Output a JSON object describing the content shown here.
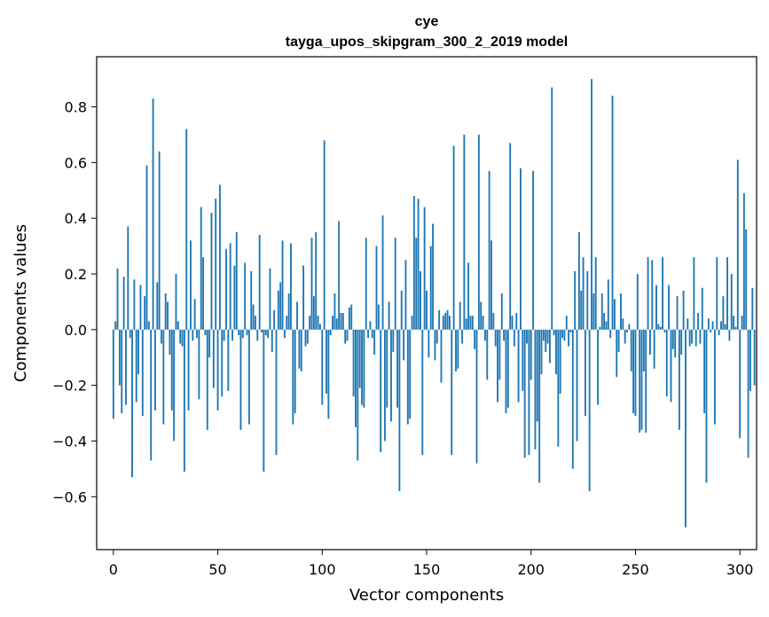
{
  "chart_data": {
    "type": "bar",
    "title": "cye",
    "subtitle": "tayga_upos_skipgram_300_2_2019 model",
    "xlabel": "Vector components",
    "ylabel": "Components values",
    "xlim": [
      -8,
      308
    ],
    "ylim": [
      -0.79,
      0.98
    ],
    "xticks": [
      0,
      50,
      100,
      150,
      200,
      250,
      300
    ],
    "xtick_labels": [
      "0",
      "50",
      "100",
      "150",
      "200",
      "250",
      "300"
    ],
    "yticks": [
      -0.6,
      -0.4,
      -0.2,
      0.0,
      0.2,
      0.4,
      0.6,
      0.8
    ],
    "ytick_labels": [
      "−0.6",
      "−0.4",
      "−0.2",
      "0.0",
      "0.2",
      "0.4",
      "0.6",
      "0.8"
    ],
    "bar_color": "#1f77b4",
    "values": [
      -0.32,
      0.03,
      0.22,
      -0.2,
      -0.3,
      0.19,
      -0.27,
      0.37,
      -0.03,
      -0.53,
      0.18,
      -0.26,
      -0.16,
      0.16,
      -0.31,
      0.12,
      0.59,
      0.03,
      -0.47,
      0.83,
      -0.29,
      0.17,
      0.64,
      -0.05,
      -0.34,
      0.13,
      0.1,
      -0.09,
      -0.29,
      -0.4,
      0.2,
      0.03,
      -0.05,
      -0.06,
      -0.51,
      0.72,
      -0.29,
      0.32,
      -0.04,
      0.11,
      -0.03,
      -0.25,
      0.44,
      0.26,
      -0.02,
      -0.36,
      -0.1,
      0.42,
      -0.21,
      0.47,
      -0.29,
      0.52,
      -0.24,
      -0.04,
      0.29,
      -0.22,
      0.31,
      -0.04,
      0.23,
      0.35,
      -0.02,
      -0.36,
      -0.03,
      0.24,
      -0.02,
      -0.34,
      0.21,
      0.09,
      0.05,
      -0.04,
      0.34,
      -0.01,
      -0.51,
      -0.02,
      -0.03,
      0.22,
      -0.08,
      0.07,
      -0.45,
      0.14,
      0.17,
      0.32,
      -0.03,
      0.05,
      0.13,
      0.31,
      -0.34,
      -0.3,
      0.1,
      -0.14,
      -0.15,
      0.23,
      -0.06,
      -0.05,
      0.05,
      0.33,
      0.12,
      0.35,
      0.05,
      0.02,
      -0.27,
      0.68,
      -0.23,
      -0.32,
      -0.02,
      0.05,
      0.13,
      0.04,
      0.39,
      0.06,
      0.06,
      -0.05,
      -0.04,
      0.08,
      0.09,
      -0.24,
      -0.35,
      -0.47,
      -0.21,
      -0.27,
      -0.28,
      0.33,
      -0.03,
      0.03,
      -0.03,
      -0.09,
      0.3,
      0.09,
      -0.44,
      0.41,
      -0.4,
      -0.28,
      0.1,
      -0.33,
      -0.08,
      0.33,
      -0.28,
      -0.58,
      0.14,
      -0.11,
      0.25,
      -0.34,
      -0.32,
      0.05,
      0.48,
      0.33,
      0.47,
      0.21,
      -0.45,
      0.44,
      0.14,
      -0.1,
      0.3,
      0.38,
      -0.11,
      -0.05,
      0.07,
      -0.19,
      0.05,
      0.06,
      0.07,
      0.05,
      -0.45,
      0.66,
      -0.15,
      -0.14,
      0.1,
      -0.05,
      0.7,
      0.04,
      0.24,
      0.05,
      0.05,
      -0.07,
      -0.48,
      0.7,
      0.1,
      0.05,
      -0.04,
      -0.18,
      0.57,
      0.32,
      0.06,
      -0.06,
      -0.26,
      -0.18,
      0.13,
      -0.04,
      -0.3,
      -0.28,
      0.67,
      0.05,
      -0.06,
      0.06,
      -0.26,
      0.58,
      -0.22,
      -0.46,
      -0.05,
      -0.45,
      -0.18,
      0.57,
      -0.43,
      -0.33,
      -0.55,
      -0.16,
      -0.04,
      -0.08,
      -0.05,
      -0.12,
      0.87,
      -0.02,
      -0.16,
      -0.42,
      -0.23,
      -0.03,
      -0.04,
      0.05,
      -0.06,
      -0.01,
      -0.5,
      0.21,
      -0.4,
      0.35,
      0.14,
      0.26,
      -0.31,
      0.21,
      -0.58,
      0.9,
      0.13,
      0.26,
      -0.27,
      0.01,
      0.13,
      0.06,
      0.03,
      0.18,
      -0.03,
      0.84,
      0.11,
      -0.17,
      -0.08,
      0.13,
      0.04,
      -0.05,
      -0.01,
      0.02,
      -0.15,
      -0.3,
      -0.31,
      0.2,
      -0.37,
      -0.36,
      -0.15,
      -0.37,
      0.26,
      -0.09,
      0.25,
      -0.14,
      0.16,
      0.02,
      0.01,
      0.26,
      -0.01,
      -0.24,
      0.16,
      -0.26,
      -0.07,
      -0.1,
      0.12,
      -0.36,
      -0.09,
      0.14,
      -0.71,
      0.04,
      -0.06,
      -0.05,
      0.26,
      -0.06,
      0.06,
      -0.05,
      0.15,
      -0.3,
      -0.55,
      0.04,
      -0.01,
      0.03,
      -0.34,
      0.26,
      -0.02,
      0.03,
      0.12,
      0.02,
      0.26,
      -0.04,
      0.2,
      0.05,
      0.01,
      0.61,
      -0.39,
      0.05,
      0.49,
      0.36,
      -0.46,
      -0.22,
      0.15,
      -0.2
    ]
  }
}
